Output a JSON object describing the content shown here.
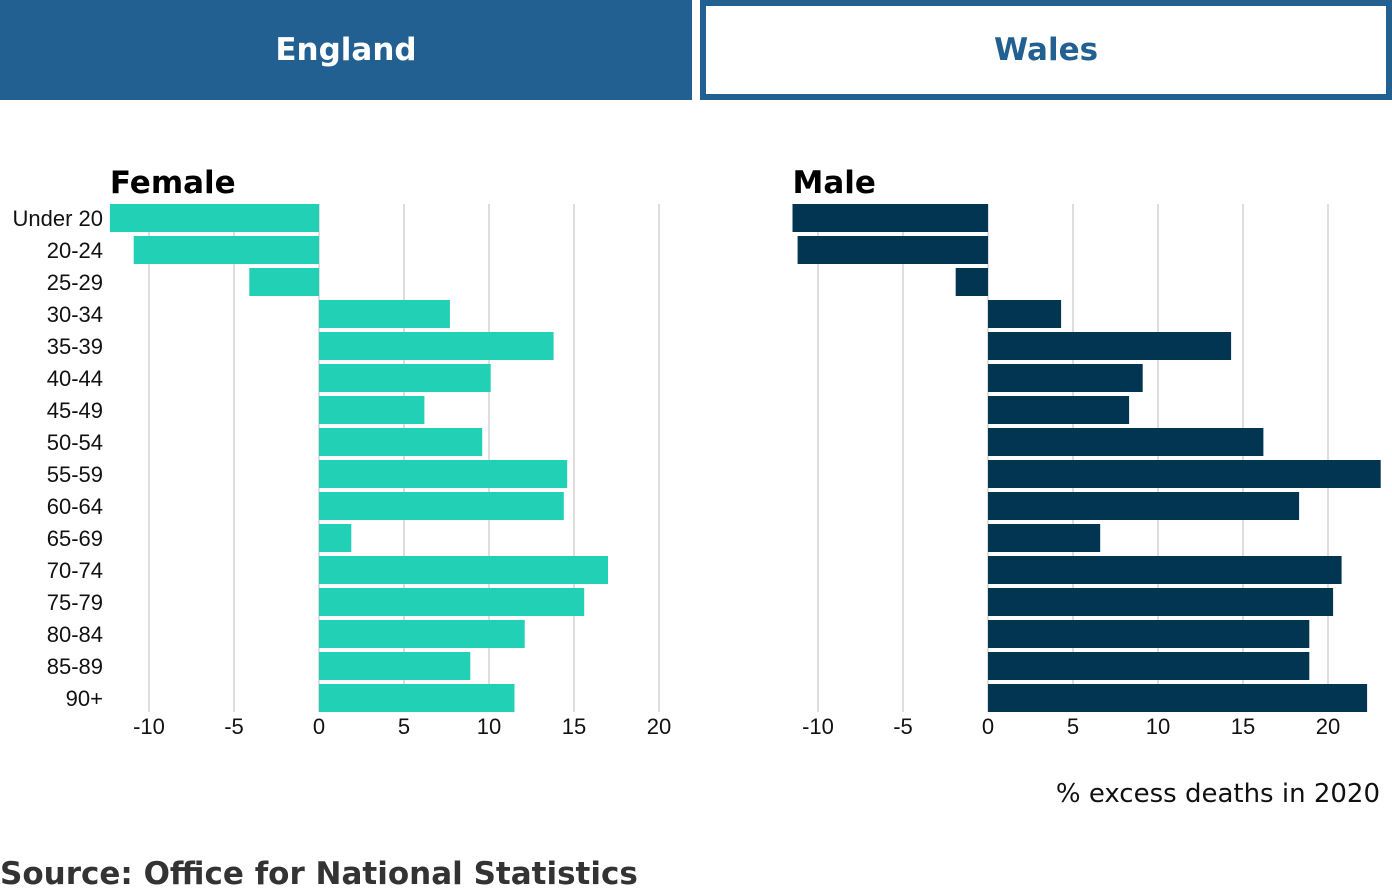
{
  "tabs": [
    {
      "label": "England",
      "active": true
    },
    {
      "label": "Wales",
      "active": false
    }
  ],
  "source": "Source: Office for National Statistics",
  "colors": {
    "tab": "#236092",
    "female": "#22d0b6",
    "male": "#023552",
    "grid": "#cccccc"
  },
  "chart_data": [
    {
      "type": "bar",
      "orientation": "horizontal",
      "title": "Female",
      "categories": [
        "Under 20",
        "20-24",
        "25-29",
        "30-34",
        "35-39",
        "40-44",
        "45-49",
        "50-54",
        "55-59",
        "60-64",
        "65-69",
        "70-74",
        "75-79",
        "80-84",
        "85-89",
        "90+"
      ],
      "values": [
        -12.3,
        -10.9,
        -4.1,
        7.7,
        13.8,
        10.1,
        6.2,
        9.6,
        14.6,
        14.4,
        1.9,
        17.0,
        15.6,
        12.1,
        8.9,
        11.5
      ],
      "xticks": [
        "-10",
        "-5",
        "0",
        "5",
        "10",
        "15",
        "20"
      ],
      "xlim": [
        -12.3,
        20
      ],
      "grid": true
    },
    {
      "type": "bar",
      "orientation": "horizontal",
      "title": "Male",
      "categories": [
        "Under 20",
        "20-24",
        "25-29",
        "30-34",
        "35-39",
        "40-44",
        "45-49",
        "50-54",
        "55-59",
        "60-64",
        "65-69",
        "70-74",
        "75-79",
        "80-84",
        "85-89",
        "90+"
      ],
      "values": [
        -11.5,
        -11.2,
        -1.9,
        4.3,
        14.3,
        9.1,
        8.3,
        16.2,
        23.1,
        18.3,
        6.6,
        20.8,
        20.3,
        18.9,
        18.9,
        22.3
      ],
      "xticks": [
        "-10",
        "-5",
        "0",
        "5",
        "10",
        "15",
        "20"
      ],
      "xlim": [
        -11.5,
        23.1
      ],
      "grid": true,
      "xlabel": "% excess deaths in 2020"
    }
  ]
}
